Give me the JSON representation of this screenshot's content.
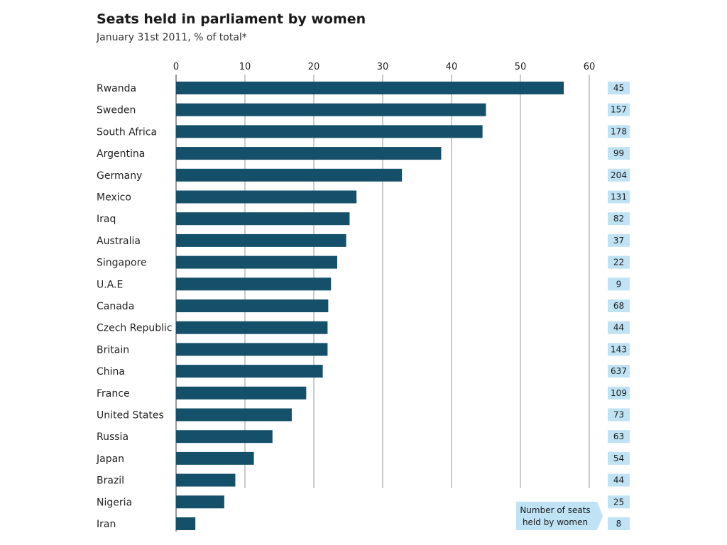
{
  "chart_data": {
    "type": "bar",
    "orientation": "horizontal",
    "title": "Seats held in parliament by women",
    "subtitle": "January 31st 2011, % of total*",
    "categories": [
      "Rwanda",
      "Sweden",
      "South Africa",
      "Argentina",
      "Germany",
      "Mexico",
      "Iraq",
      "Australia",
      "Singapore",
      "U.A.E",
      "Canada",
      "Czech Republic",
      "Britain",
      "China",
      "France",
      "United States",
      "Russia",
      "Japan",
      "Brazil",
      "Nigeria",
      "Iran"
    ],
    "series": [
      {
        "values": [
          56.3,
          45.0,
          44.5,
          38.5,
          32.8,
          26.2,
          25.2,
          24.7,
          23.4,
          22.5,
          22.1,
          22.0,
          22.0,
          21.3,
          18.9,
          16.8,
          14.0,
          11.3,
          8.6,
          7.0,
          2.8
        ]
      }
    ],
    "seats_held": [
      "45",
      "157",
      "178",
      "99",
      "204",
      "131",
      "82",
      "37",
      "22",
      "9",
      "68",
      "44",
      "143",
      "637",
      "109",
      "73",
      "63",
      "54",
      "44",
      "25",
      "8"
    ],
    "seats_legend": "Number of seats held by women",
    "xlim": [
      0,
      60
    ],
    "x_ticks": [
      "0",
      "10",
      "20",
      "30",
      "40",
      "50",
      "60"
    ],
    "x_axis_position": "top",
    "grid": true,
    "colors": {
      "bar": "#15506b",
      "grid": "#b8b8b8",
      "seat_box": "#bfe3f5"
    }
  }
}
